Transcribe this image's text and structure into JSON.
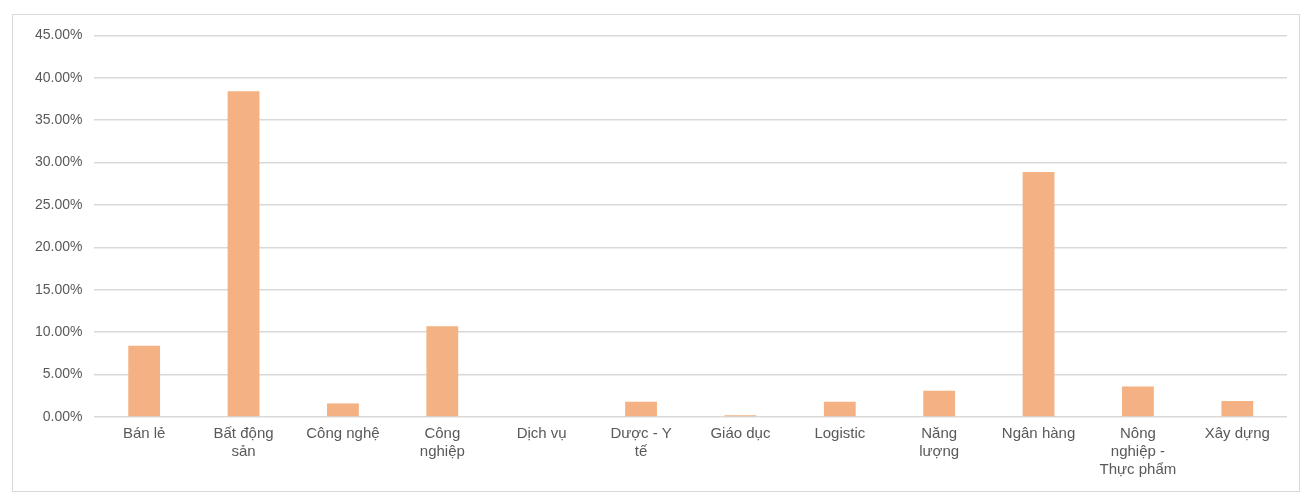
{
  "chart_data": {
    "type": "bar",
    "categories": [
      "Bán lẻ",
      "Bất động sản",
      "Công nghệ",
      "Công nghiệp",
      "Dịch vụ",
      "Dược - Y tế",
      "Giáo dục",
      "Logistic",
      "Năng lượng",
      "Ngân hàng",
      "Nông nghiệp - Thực phẩm",
      "Xây dựng"
    ],
    "values": [
      8.4,
      38.4,
      1.6,
      10.7,
      0,
      1.8,
      0.2,
      1.8,
      3.1,
      28.9,
      3.6,
      1.9
    ],
    "color": "#f4b183",
    "ylim": [
      0,
      45
    ],
    "yticks": [
      {
        "value": 0,
        "label": "0.00%"
      },
      {
        "value": 5,
        "label": "5.00%"
      },
      {
        "value": 10,
        "label": "10.00%"
      },
      {
        "value": 15,
        "label": "15.00%"
      },
      {
        "value": 20,
        "label": "20.00%"
      },
      {
        "value": 25,
        "label": "25.00%"
      },
      {
        "value": 30,
        "label": "30.00%"
      },
      {
        "value": 35,
        "label": "35.00%"
      },
      {
        "value": 40,
        "label": "40.00%"
      },
      {
        "value": 45,
        "label": "45.00%"
      }
    ],
    "grid": "y",
    "legend": false
  }
}
